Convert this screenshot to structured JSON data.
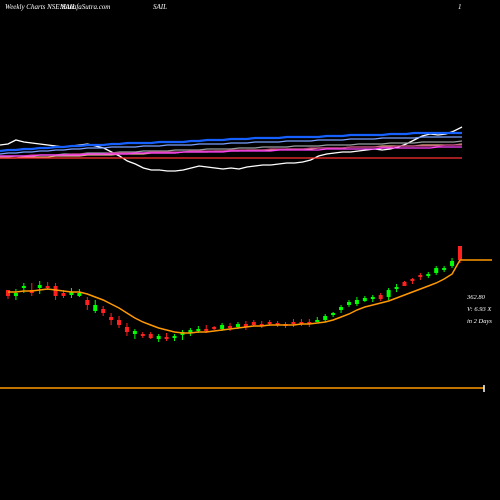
{
  "header": {
    "left": "Weekly Charts NSE:SAIL",
    "site": "MunafaSutra.com",
    "symbol": "SAIL",
    "page_number": "1"
  },
  "chart_data": [
    {
      "type": "line",
      "panel": "moving averages",
      "series": [
        {
          "color": "#ffffff",
          "values": [
            145,
            144,
            140,
            142,
            143,
            144,
            145,
            146,
            147,
            146,
            145,
            144,
            146,
            148,
            152,
            156,
            161,
            164,
            168,
            170,
            170,
            171,
            171,
            170,
            168,
            166,
            167,
            168,
            169,
            168,
            169,
            167,
            166,
            165,
            165,
            164,
            163,
            163,
            162,
            160,
            156,
            154,
            153,
            152,
            152,
            151,
            150,
            149,
            150,
            149,
            147,
            144,
            140,
            136,
            134,
            135,
            134,
            131,
            127
          ]
        },
        {
          "color": "#1560ff",
          "values": [
            151,
            150,
            150,
            149,
            149,
            148,
            148,
            147,
            147,
            146,
            146,
            145,
            145,
            145,
            144,
            144,
            143,
            143,
            143,
            143,
            142,
            142,
            142,
            142,
            141,
            141,
            140,
            140,
            140,
            139,
            139,
            139,
            138,
            138,
            138,
            138,
            137,
            137,
            137,
            137,
            137,
            136,
            136,
            136,
            135,
            135,
            135,
            135,
            135,
            134,
            134,
            134,
            133,
            133,
            133,
            133,
            133,
            133,
            133
          ]
        },
        {
          "color": "#7aa0ff",
          "values": [
            154,
            153,
            153,
            152,
            152,
            151,
            151,
            150,
            150,
            149,
            149,
            148,
            148,
            148,
            147,
            147,
            147,
            147,
            146,
            146,
            146,
            145,
            145,
            145,
            145,
            144,
            144,
            144,
            144,
            143,
            143,
            143,
            142,
            142,
            142,
            142,
            141,
            141,
            141,
            141,
            140,
            140,
            140,
            140,
            139,
            139,
            139,
            139,
            138,
            138,
            138,
            138,
            138,
            137,
            137,
            137,
            137,
            137,
            137
          ]
        },
        {
          "color": "#9aa0a0",
          "values": [
            157,
            157,
            156,
            156,
            156,
            155,
            155,
            155,
            154,
            154,
            154,
            153,
            153,
            153,
            153,
            152,
            152,
            152,
            151,
            151,
            151,
            151,
            150,
            150,
            150,
            150,
            149,
            149,
            149,
            149,
            148,
            148,
            148,
            147,
            147,
            147,
            147,
            146,
            146,
            146,
            146,
            145,
            145,
            145,
            145,
            144,
            144,
            144,
            144,
            143,
            143,
            143,
            143,
            142,
            142,
            142,
            142,
            142,
            141
          ]
        },
        {
          "color": "#e0b080",
          "values": [
            158,
            158,
            158,
            157,
            157,
            157,
            157,
            156,
            156,
            156,
            156,
            155,
            155,
            155,
            155,
            154,
            154,
            154,
            154,
            153,
            153,
            153,
            153,
            152,
            152,
            152,
            152,
            151,
            151,
            151,
            151,
            150,
            150,
            150,
            150,
            150,
            149,
            149,
            149,
            149,
            148,
            148,
            148,
            148,
            147,
            147,
            147,
            147,
            146,
            146,
            146,
            146,
            146,
            145,
            145,
            145,
            145,
            145,
            144
          ]
        },
        {
          "color": "#c04080",
          "values": [
            156,
            156,
            156,
            156,
            155,
            155,
            155,
            155,
            155,
            154,
            154,
            154,
            154,
            154,
            153,
            153,
            153,
            153,
            153,
            152,
            152,
            152,
            152,
            152,
            151,
            151,
            151,
            151,
            151,
            150,
            150,
            150,
            150,
            150,
            149,
            149,
            149,
            149,
            149,
            148,
            148,
            148,
            148,
            148,
            147,
            147,
            147,
            147,
            147,
            147,
            146,
            146,
            146,
            146,
            146,
            146,
            145,
            145,
            145
          ]
        },
        {
          "color": "#ff40ff",
          "values": [
            156,
            156,
            156,
            156,
            156,
            155,
            155,
            155,
            155,
            155,
            155,
            154,
            154,
            154,
            154,
            154,
            154,
            153,
            153,
            153,
            153,
            153,
            153,
            152,
            152,
            152,
            152,
            152,
            152,
            151,
            151,
            151,
            151,
            151,
            151,
            150,
            150,
            150,
            150,
            150,
            150,
            149,
            149,
            149,
            149,
            149,
            149,
            149,
            148,
            148,
            148,
            148,
            148,
            148,
            148,
            147,
            147,
            147,
            147
          ]
        },
        {
          "color": "#ff3030",
          "values": [
            158,
            158,
            158,
            158,
            158,
            158,
            158,
            158,
            158,
            158,
            158,
            158,
            158,
            158,
            158,
            158,
            158,
            158,
            158,
            158,
            158,
            158,
            158,
            158,
            158,
            158,
            158,
            158,
            158,
            158,
            158,
            158,
            158,
            158,
            158,
            158,
            158,
            158,
            158,
            158,
            158,
            158,
            158,
            158,
            158,
            158,
            158,
            158,
            158,
            158,
            158,
            158,
            158,
            158,
            158,
            158,
            158,
            158,
            158
          ]
        }
      ]
    },
    {
      "type": "candlestick",
      "panel": "price",
      "price_label": "362.80",
      "volume_label": "V: 6.93  X",
      "days_label": "in 2 Days",
      "candles": [
        [
          290,
          296,
          299,
          292
        ],
        [
          296,
          293,
          300,
          289
        ],
        [
          288,
          286,
          293,
          283
        ],
        [
          290,
          293,
          296,
          283
        ],
        [
          288,
          285,
          294,
          281
        ],
        [
          286,
          286,
          290,
          282
        ],
        [
          286,
          296,
          300,
          283
        ],
        [
          293,
          296,
          298,
          290
        ],
        [
          295,
          292,
          298,
          288
        ],
        [
          296,
          293,
          297,
          289
        ],
        [
          300,
          305,
          310,
          297
        ],
        [
          311,
          305,
          313,
          300
        ],
        [
          309,
          313,
          316,
          306
        ],
        [
          317,
          320,
          325,
          313
        ],
        [
          320,
          325,
          328,
          316
        ],
        [
          327,
          332,
          336,
          323
        ],
        [
          334,
          331,
          339,
          329
        ],
        [
          334,
          336,
          338,
          332
        ],
        [
          334,
          338,
          339,
          332
        ],
        [
          339,
          336,
          342,
          334
        ],
        [
          337,
          338,
          341,
          333
        ],
        [
          338,
          336,
          341,
          334
        ],
        [
          335,
          332,
          340,
          330
        ],
        [
          333,
          330,
          336,
          328
        ],
        [
          331,
          329,
          333,
          326
        ],
        [
          329,
          330,
          333,
          325
        ],
        [
          327,
          327,
          330,
          326
        ],
        [
          329,
          325,
          331,
          323
        ],
        [
          326,
          328,
          331,
          323
        ],
        [
          327,
          324,
          329,
          322
        ],
        [
          324,
          327,
          330,
          321
        ],
        [
          322,
          325,
          326,
          320
        ],
        [
          324,
          325,
          328,
          321
        ],
        [
          322,
          322,
          326,
          320
        ],
        [
          323,
          325,
          327,
          321
        ],
        [
          324,
          324,
          328,
          322
        ],
        [
          322,
          324,
          327,
          319
        ],
        [
          322,
          322,
          326,
          319
        ],
        [
          322,
          324,
          327,
          319
        ],
        [
          321,
          320,
          322,
          317
        ],
        [
          320,
          316,
          322,
          314
        ],
        [
          315,
          313,
          317,
          312
        ],
        [
          310,
          307,
          313,
          305
        ],
        [
          305,
          302,
          307,
          300
        ],
        [
          304,
          300,
          306,
          297
        ],
        [
          301,
          298,
          302,
          296
        ],
        [
          299,
          297,
          302,
          295
        ],
        [
          295,
          299,
          301,
          293
        ],
        [
          297,
          290,
          300,
          288
        ],
        [
          289,
          287,
          292,
          284
        ],
        [
          282,
          286,
          286,
          281
        ],
        [
          279,
          281,
          284,
          278
        ],
        [
          275,
          276,
          280,
          273
        ],
        [
          276,
          274,
          278,
          272
        ],
        [
          273,
          268,
          275,
          266
        ],
        [
          270,
          268,
          272,
          266
        ],
        [
          266,
          261,
          268,
          258
        ],
        [
          246,
          260,
          263,
          246
        ]
      ],
      "ema_color": "#ff9900",
      "ema": [
        292,
        292,
        291,
        291,
        290,
        289,
        290,
        291,
        292,
        292,
        294,
        297,
        300,
        304,
        308,
        313,
        318,
        322,
        325,
        328,
        330,
        332,
        333,
        333,
        332,
        332,
        331,
        330,
        329,
        328,
        327,
        326,
        326,
        325,
        325,
        325,
        325,
        324,
        324,
        323,
        322,
        320,
        317,
        314,
        310,
        307,
        305,
        303,
        301,
        298,
        295,
        292,
        289,
        286,
        283,
        279,
        274,
        260
      ],
      "up_color": "#00ff00",
      "down_color": "#ff2020"
    }
  ]
}
